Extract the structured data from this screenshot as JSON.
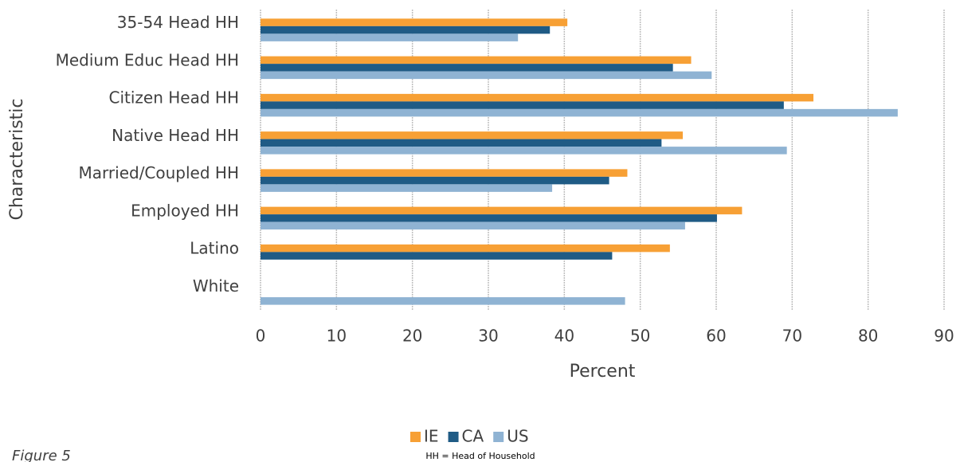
{
  "chart_data": {
    "type": "bar",
    "orientation": "horizontal",
    "categories": [
      "35-54 Head HH",
      "Medium Educ Head HH",
      "Citizen Head HH",
      "Native Head HH",
      "Married/Coupled HH",
      "Employed HH",
      "Latino",
      "White"
    ],
    "series": [
      {
        "name": "IE",
        "color": "#f7a035",
        "values": [
          40.4,
          56.7,
          72.8,
          55.6,
          48.3,
          63.4,
          53.9,
          null
        ]
      },
      {
        "name": "CA",
        "color": "#1f5b85",
        "values": [
          38.1,
          54.3,
          68.9,
          52.8,
          45.9,
          60.1,
          46.3,
          null
        ]
      },
      {
        "name": "US",
        "color": "#8fb3d3",
        "values": [
          33.9,
          59.4,
          83.9,
          69.3,
          38.4,
          55.9,
          null,
          48.0
        ]
      }
    ],
    "xlabel": "Percent",
    "ylabel": "Characteristic",
    "xlim": [
      0,
      90
    ],
    "xticks": [
      0,
      10,
      20,
      30,
      40,
      50,
      60,
      70,
      80,
      90
    ],
    "grid": true,
    "legend": "bottom",
    "note": "HH = Head of Household",
    "caption": "Figure 5"
  }
}
